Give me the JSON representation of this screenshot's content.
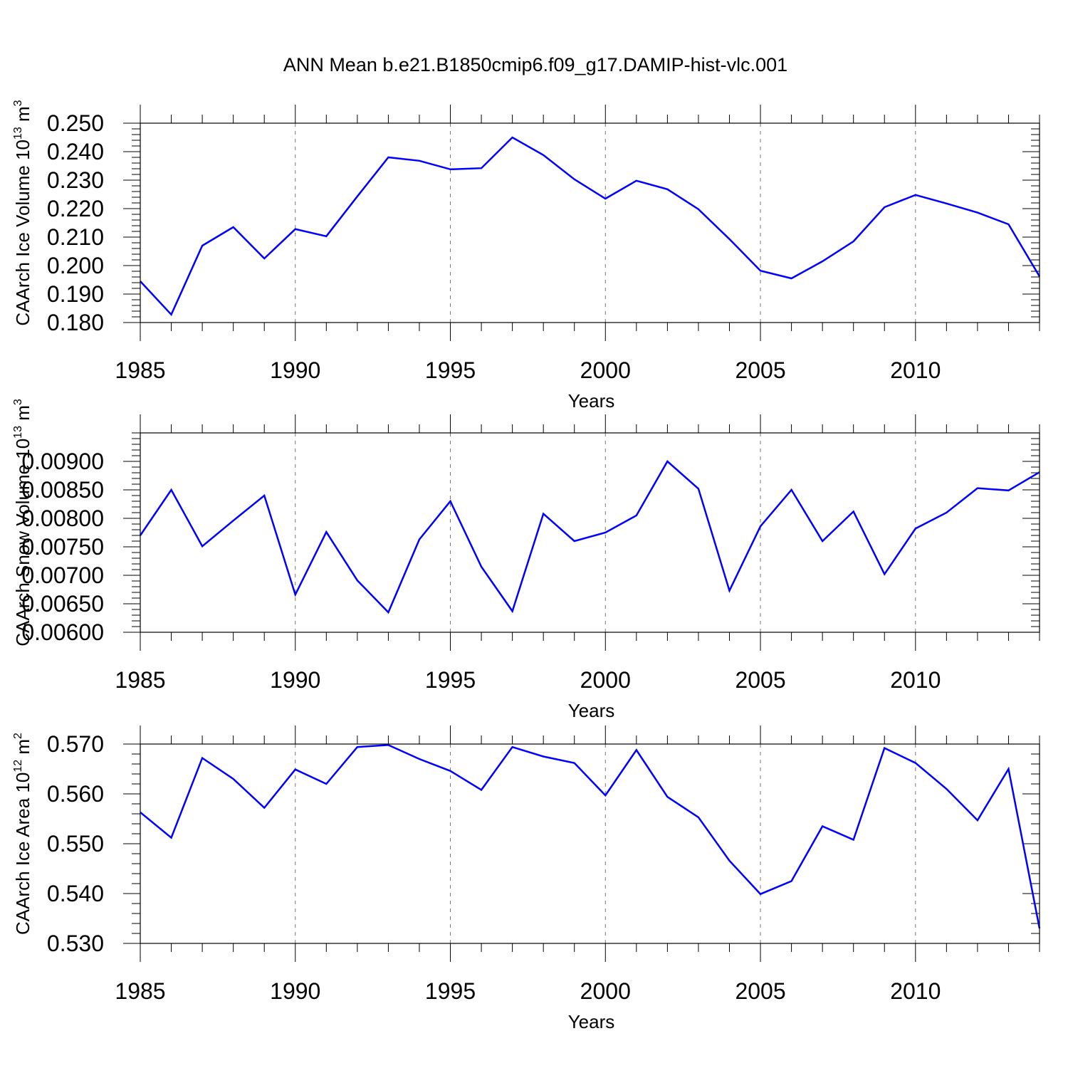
{
  "title": "ANN Mean b.e21.B1850cmip6.f09_g17.DAMIP-hist-vlc.001",
  "chart_data": [
    {
      "type": "line",
      "title": "ANN Mean b.e21.B1850cmip6.f09_g17.DAMIP-hist-vlc.001",
      "xlabel": "Years",
      "ylabel": {
        "main": "CAArch Ice Volume 10",
        "exp": "13",
        "unit": "m",
        "unit_exp": "3"
      },
      "xlim": [
        1985,
        2014
      ],
      "ylim": [
        0.18,
        0.25
      ],
      "x_ticks": [
        1985,
        1990,
        1995,
        2000,
        2005,
        2010
      ],
      "x_tick_labels": [
        "1985",
        "1990",
        "1995",
        "2000",
        "2005",
        "2010"
      ],
      "y_ticks": [
        0.18,
        0.19,
        0.2,
        0.21,
        0.22,
        0.23,
        0.24,
        0.25
      ],
      "y_tick_labels": [
        "0.180",
        "0.190",
        "0.200",
        "0.210",
        "0.220",
        "0.230",
        "0.240",
        "0.250"
      ],
      "y_minor_step": 0.002,
      "line_color": "#0000ff",
      "grid": "x-dashed",
      "x": [
        1985,
        1986,
        1987,
        1988,
        1989,
        1990,
        1991,
        1992,
        1993,
        1994,
        1995,
        1996,
        1997,
        1998,
        1999,
        2000,
        2001,
        2002,
        2003,
        2004,
        2005,
        2006,
        2007,
        2008,
        2009,
        2010,
        2011,
        2012,
        2013,
        2014
      ],
      "values": [
        0.1945,
        0.1828,
        0.207,
        0.2135,
        0.2025,
        0.2128,
        0.2103,
        0.2243,
        0.238,
        0.2368,
        0.2338,
        0.2342,
        0.245,
        0.2388,
        0.2303,
        0.2235,
        0.2298,
        0.2268,
        0.2198,
        0.2093,
        0.1982,
        0.1955,
        0.2015,
        0.2085,
        0.2205,
        0.2248,
        0.2218,
        0.2186,
        0.2145,
        0.1962
      ]
    },
    {
      "type": "line",
      "xlabel": "Years",
      "ylabel": {
        "main": "CAArch Snow Volume 10",
        "exp": "13",
        "unit": "m",
        "unit_exp": "3"
      },
      "xlim": [
        1985,
        2014
      ],
      "ylim": [
        0.006,
        0.0095
      ],
      "x_ticks": [
        1985,
        1990,
        1995,
        2000,
        2005,
        2010
      ],
      "x_tick_labels": [
        "1985",
        "1990",
        "1995",
        "2000",
        "2005",
        "2010"
      ],
      "y_ticks": [
        0.006,
        0.0065,
        0.007,
        0.0075,
        0.008,
        0.0085,
        0.009
      ],
      "y_tick_labels": [
        "0.00600",
        "0.00650",
        "0.00700",
        "0.00750",
        "0.00800",
        "0.00850",
        "0.00900"
      ],
      "y_minor_step": 0.0001,
      "line_color": "#0000ff",
      "grid": "x-dashed",
      "x": [
        1985,
        1986,
        1987,
        1988,
        1989,
        1990,
        1991,
        1992,
        1993,
        1994,
        1995,
        1996,
        1997,
        1998,
        1999,
        2000,
        2001,
        2002,
        2003,
        2004,
        2005,
        2006,
        2007,
        2008,
        2009,
        2010,
        2011,
        2012,
        2013,
        2014
      ],
      "values": [
        0.0077,
        0.0085,
        0.00751,
        0.00796,
        0.0084,
        0.00666,
        0.00776,
        0.00691,
        0.00635,
        0.00763,
        0.0083,
        0.00715,
        0.00637,
        0.00808,
        0.0076,
        0.00775,
        0.00805,
        0.009,
        0.00852,
        0.00673,
        0.00786,
        0.0085,
        0.0076,
        0.00812,
        0.00702,
        0.00782,
        0.0081,
        0.00853,
        0.00849,
        0.00881
      ]
    },
    {
      "type": "line",
      "xlabel": "Years",
      "ylabel": {
        "main": "CAArch Ice Area 10",
        "exp": "12",
        "unit": "m",
        "unit_exp": "2"
      },
      "xlim": [
        1985,
        2014
      ],
      "ylim": [
        0.53,
        0.57
      ],
      "x_ticks": [
        1985,
        1990,
        1995,
        2000,
        2005,
        2010
      ],
      "x_tick_labels": [
        "1985",
        "1990",
        "1995",
        "2000",
        "2005",
        "2010"
      ],
      "y_ticks": [
        0.53,
        0.54,
        0.55,
        0.56,
        0.57
      ],
      "y_tick_labels": [
        "0.530",
        "0.540",
        "0.550",
        "0.560",
        "0.570"
      ],
      "y_minor_step": 0.002,
      "line_color": "#0000ff",
      "grid": "x-dashed",
      "x": [
        1985,
        1986,
        1987,
        1988,
        1989,
        1990,
        1991,
        1992,
        1993,
        1994,
        1995,
        1996,
        1997,
        1998,
        1999,
        2000,
        2001,
        2002,
        2003,
        2004,
        2005,
        2006,
        2007,
        2008,
        2009,
        2010,
        2011,
        2012,
        2013,
        2014
      ],
      "values": [
        0.5563,
        0.5512,
        0.5672,
        0.563,
        0.5572,
        0.5649,
        0.562,
        0.5694,
        0.5698,
        0.567,
        0.5646,
        0.5608,
        0.5694,
        0.5675,
        0.5662,
        0.5597,
        0.5688,
        0.5594,
        0.5553,
        0.5466,
        0.5399,
        0.5425,
        0.5535,
        0.5508,
        0.5692,
        0.5662,
        0.561,
        0.5547,
        0.565,
        0.533
      ]
    }
  ]
}
